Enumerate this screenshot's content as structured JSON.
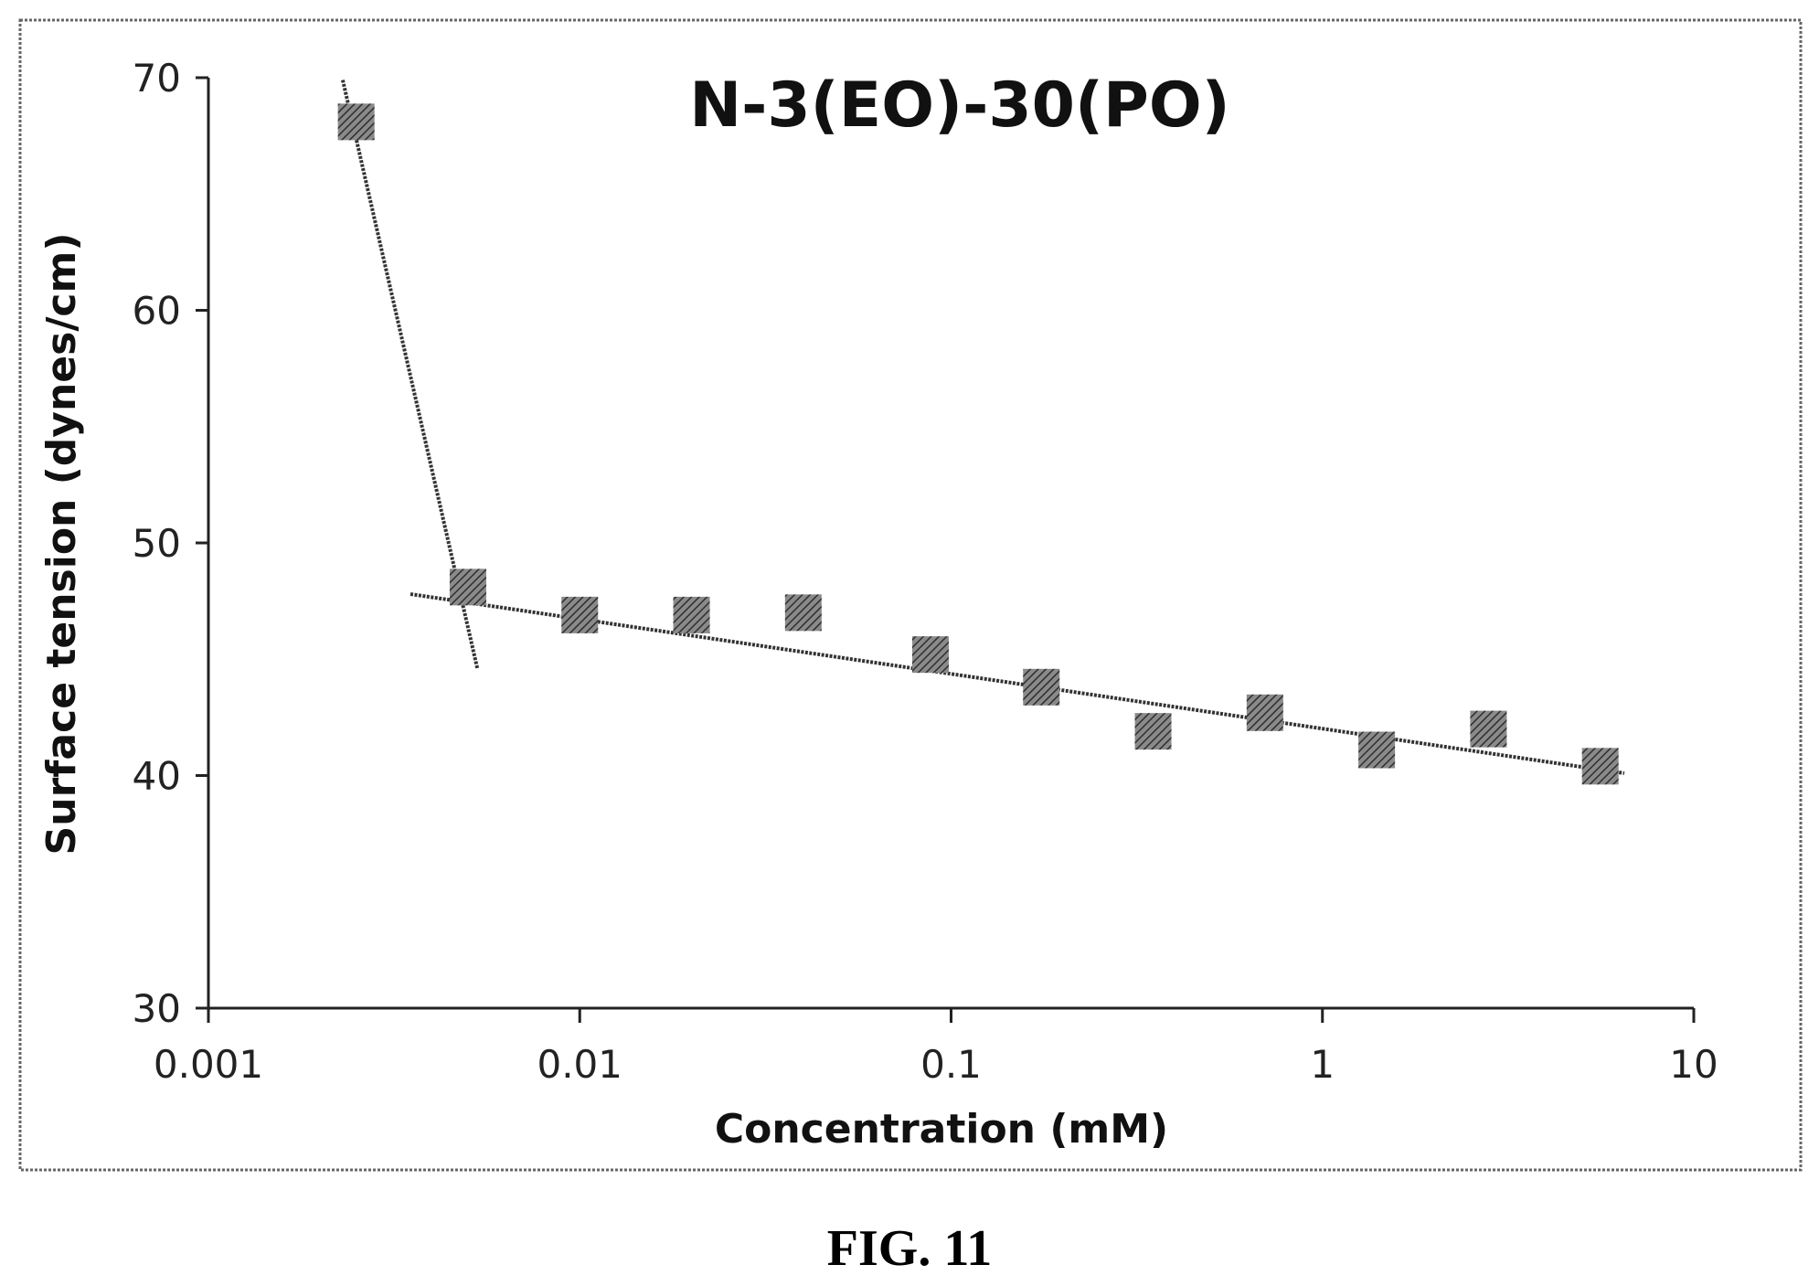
{
  "chart_data": {
    "type": "scatter",
    "title": "N-3(EO)-30(PO)",
    "xlabel": "Concentration (mM)",
    "ylabel": "Surface tension (dynes/cm)",
    "x_scale": "log",
    "xlim": [
      0.001,
      10
    ],
    "ylim": [
      30,
      70
    ],
    "x_tick_labels": [
      "0.001",
      "0.01",
      "0.1",
      "1",
      "10"
    ],
    "y_tick_labels": [
      "30",
      "40",
      "50",
      "60",
      "70"
    ],
    "x_ticks": [
      0.001,
      0.01,
      0.1,
      1,
      10
    ],
    "y_ticks": [
      30,
      40,
      50,
      60,
      70
    ],
    "grid": false,
    "legend": "none",
    "series": [
      {
        "marker": "square",
        "x": [
          0.0025,
          0.005,
          0.01,
          0.02,
          0.04,
          0.088,
          0.175,
          0.35,
          0.7,
          1.4,
          2.8,
          5.6
        ],
        "y": [
          68.1,
          48.1,
          46.9,
          46.9,
          47.0,
          45.2,
          43.8,
          41.9,
          42.7,
          41.1,
          42.0,
          40.4
        ]
      }
    ],
    "trendlines": [
      {
        "x": [
          0.0023,
          0.0053
        ],
        "y": [
          69.9,
          44.6
        ]
      },
      {
        "x": [
          0.0035,
          6.5
        ],
        "y": [
          47.8,
          40.1
        ]
      }
    ]
  },
  "caption": "FIG. 11",
  "colors": {
    "ink": "#222222",
    "marker": "#555555",
    "frame": "#666666"
  }
}
